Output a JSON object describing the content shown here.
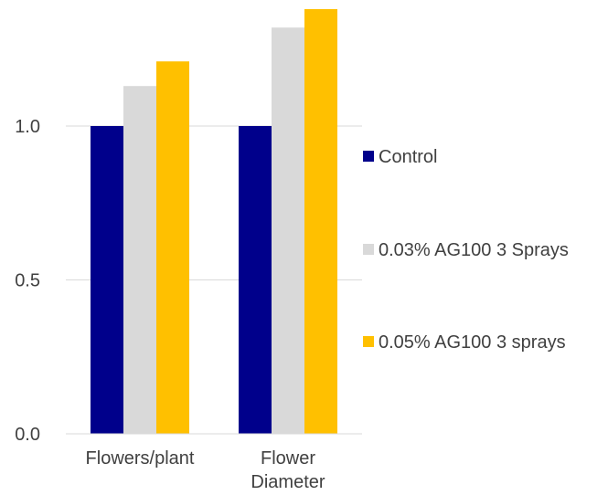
{
  "chart_data": {
    "type": "bar",
    "categories": [
      [
        "Flowers/plant"
      ],
      [
        "Flower",
        "Diameter"
      ]
    ],
    "series": [
      {
        "name": "Control",
        "color": "#00008b",
        "values": [
          1.0,
          1.0
        ]
      },
      {
        "name": "0.03% AG100 3 Sprays",
        "color": "#d9d9d9",
        "values": [
          1.13,
          1.32
        ]
      },
      {
        "name": "0.05% AG100 3 sprays",
        "color": "#ffc000",
        "values": [
          1.21,
          1.38
        ]
      }
    ],
    "yticks": [
      "0.0",
      "0.5",
      "1.0"
    ],
    "ylim": [
      0,
      1.38
    ],
    "grid": true,
    "legend": "right"
  }
}
